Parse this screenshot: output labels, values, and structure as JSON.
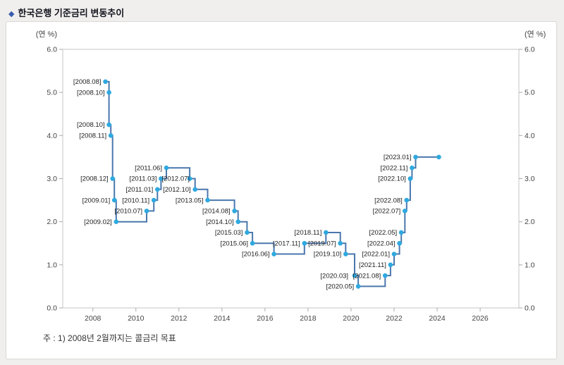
{
  "page": {
    "title_bullet": "◆",
    "title": "한국은행 기준금리 변동추이",
    "footnote": "주 : 1) 2008년 2월까지는 콜금리 목표"
  },
  "chart_data": {
    "type": "line",
    "step": true,
    "title": "한국은행 기준금리 변동추이",
    "unit_label_left": "(연 %)",
    "unit_label_right": "(연 %)",
    "x_ticks": [
      2008,
      2010,
      2012,
      2014,
      2016,
      2018,
      2020,
      2022,
      2024,
      2026
    ],
    "y_ticks": [
      "0.0",
      "1.0",
      "2.0",
      "3.0",
      "4.0",
      "5.0",
      "6.0"
    ],
    "ylim": [
      0,
      6
    ],
    "xlim": [
      2006.6,
      2027.8
    ],
    "grid": false,
    "legend": "none",
    "series": [
      {
        "name": "기준금리",
        "extend_to": 2024.08,
        "points": [
          {
            "d": "2008.08",
            "v": 5.25
          },
          {
            "d": "2008.10",
            "v": 5.0
          },
          {
            "d": "2008.10",
            "v": 4.25
          },
          {
            "d": "2008.11",
            "v": 4.0
          },
          {
            "d": "2008.12",
            "v": 3.0
          },
          {
            "d": "2009.01",
            "v": 2.5
          },
          {
            "d": "2009.02",
            "v": 2.0
          },
          {
            "d": "2010.07",
            "v": 2.25
          },
          {
            "d": "2010.11",
            "v": 2.5
          },
          {
            "d": "2011.01",
            "v": 2.75
          },
          {
            "d": "2011.03",
            "v": 3.0
          },
          {
            "d": "2011.06",
            "v": 3.25
          },
          {
            "d": "2012.07",
            "v": 3.0
          },
          {
            "d": "2012.10",
            "v": 2.75
          },
          {
            "d": "2013.05",
            "v": 2.5
          },
          {
            "d": "2014.08",
            "v": 2.25
          },
          {
            "d": "2014.10",
            "v": 2.0
          },
          {
            "d": "2015.03",
            "v": 1.75
          },
          {
            "d": "2015.06",
            "v": 1.5
          },
          {
            "d": "2016.06",
            "v": 1.25
          },
          {
            "d": "2017.11",
            "v": 1.5
          },
          {
            "d": "2018.11",
            "v": 1.75
          },
          {
            "d": "2019.07",
            "v": 1.5
          },
          {
            "d": "2019.10",
            "v": 1.25
          },
          {
            "d": "2020.03",
            "v": 0.75
          },
          {
            "d": "2020.05",
            "v": 0.5
          },
          {
            "d": "2021.08",
            "v": 0.75
          },
          {
            "d": "2021.11",
            "v": 1.0
          },
          {
            "d": "2022.01",
            "v": 1.25
          },
          {
            "d": "2022.04",
            "v": 1.5
          },
          {
            "d": "2022.05",
            "v": 1.75
          },
          {
            "d": "2022.07",
            "v": 2.25
          },
          {
            "d": "2022.08",
            "v": 2.5
          },
          {
            "d": "2022.10",
            "v": 3.0
          },
          {
            "d": "2022.11",
            "v": 3.25
          },
          {
            "d": "2023.01",
            "v": 3.5
          }
        ]
      }
    ],
    "colors": {
      "line": "#4a77ad",
      "marker": "#2ea9e0",
      "label_text": "#222222",
      "axis_text": "#444444",
      "plot_border": "#c5c5c5",
      "tick": "#aaaaaa"
    }
  }
}
